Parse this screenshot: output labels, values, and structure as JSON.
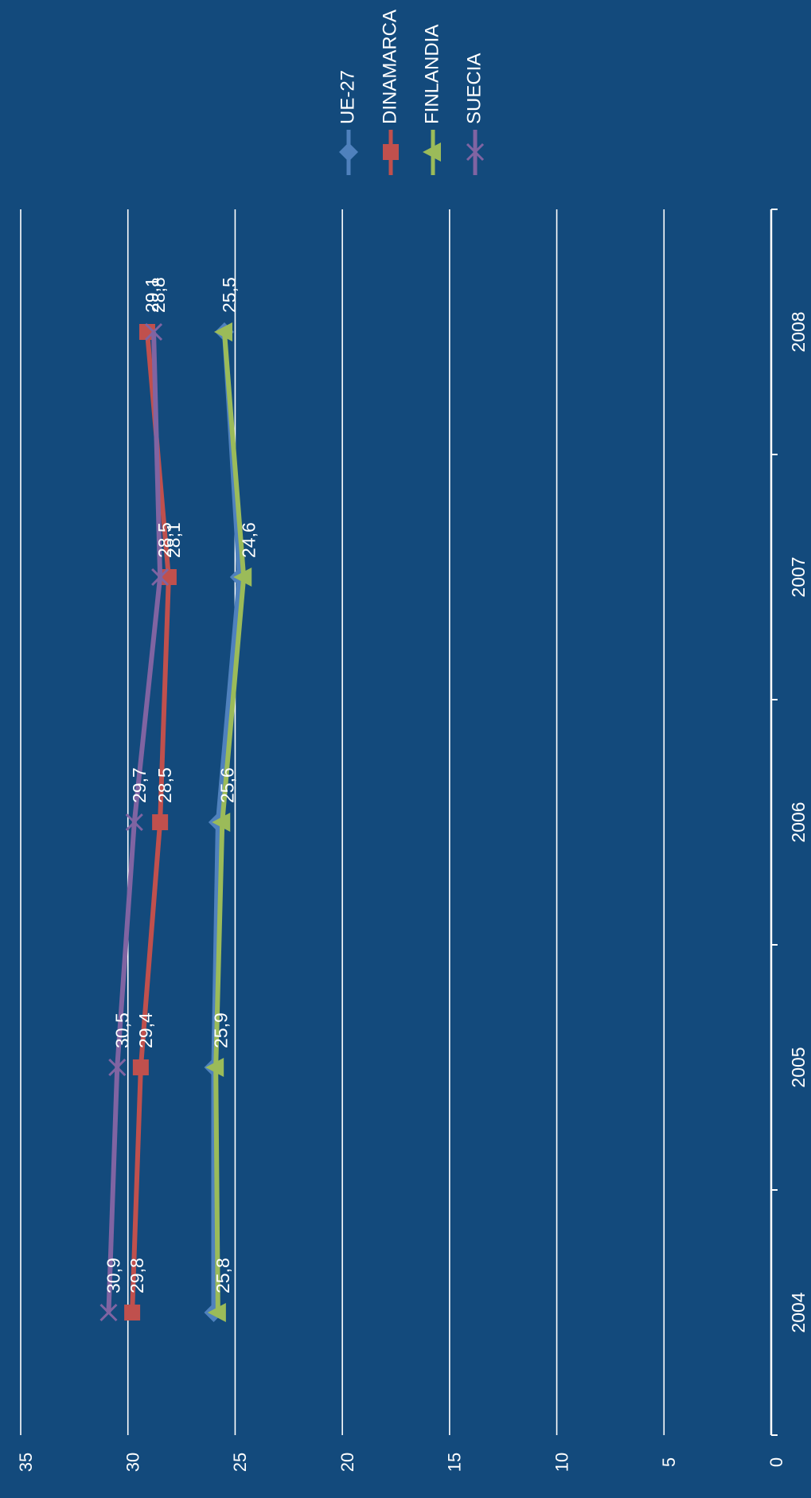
{
  "chart_data": {
    "type": "line",
    "orientation": "rotated-90-clockwise",
    "title": "",
    "xlabel": "",
    "ylabel": "",
    "categories": [
      "2004",
      "2005",
      "2006",
      "2007",
      "2008"
    ],
    "ylim": [
      0,
      35
    ],
    "yticks": [
      "0",
      "5",
      "10",
      "15",
      "20",
      "25",
      "30",
      "35"
    ],
    "grid": true,
    "legend_position": "top-right",
    "series": [
      {
        "name": "UE-27",
        "color": "#4F81BD",
        "marker": "diamond",
        "values": [
          26.0,
          26.0,
          25.8,
          24.8,
          25.5
        ],
        "labels": [
          "",
          "",
          "",
          "",
          ""
        ]
      },
      {
        "name": "DINAMARCA",
        "color": "#C0504D",
        "marker": "square",
        "values": [
          29.8,
          29.4,
          28.5,
          28.1,
          29.1
        ],
        "labels": [
          "29,8",
          "29,4",
          "28,5",
          "28,1",
          "29,1"
        ]
      },
      {
        "name": "FINLANDIA",
        "color": "#9BBB59",
        "marker": "triangle",
        "values": [
          25.8,
          25.9,
          25.6,
          24.6,
          25.5
        ],
        "labels": [
          "25,8",
          "25,9",
          "25,6",
          "24,6",
          "25,5"
        ]
      },
      {
        "name": "SUECIA",
        "color": "#8064A2",
        "marker": "x",
        "values": [
          30.9,
          30.5,
          29.7,
          28.5,
          28.8
        ],
        "labels": [
          "30,9",
          "30,5",
          "29,7",
          "28,5",
          "28,8"
        ]
      }
    ]
  }
}
